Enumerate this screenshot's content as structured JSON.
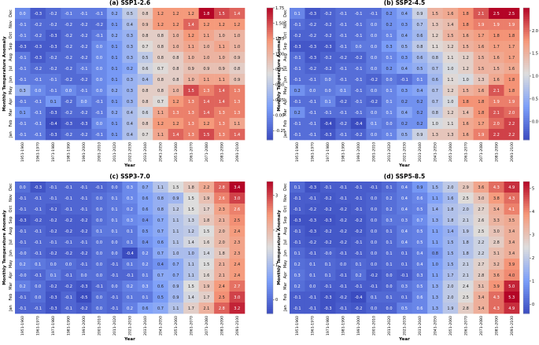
{
  "chart_data": [
    {
      "type": "heatmap",
      "title": "(a) SSP1-2.6",
      "xlabel": "Year",
      "ylabel": "Monthly Temperature Anomaly",
      "x_categories": [
        "1951-1960",
        "1961-1970",
        "1971-1980",
        "1981-1990",
        "1991-2000",
        "2001-2010",
        "2011-2020",
        "2021-2030",
        "2031-2040",
        "2041-2050",
        "2051-2060",
        "2061-2070",
        "2071-2080",
        "2081-2090",
        "2091-2100"
      ],
      "y_categories": [
        "Dec",
        "Nov",
        "Oct",
        "Sep",
        "Aug",
        "Jul",
        "Jun",
        "May",
        "Apr",
        "Mar",
        "Feb",
        "Jan"
      ],
      "colorbar": {
        "min": -0.4,
        "max": 1.75,
        "ticks": [
          "1.75",
          "1.50",
          "1.25",
          "1.00",
          "0.75",
          "0.50",
          "0.25",
          "0.00",
          "-0.25"
        ],
        "tick_values": [
          1.75,
          1.5,
          1.25,
          1.0,
          0.75,
          0.5,
          0.25,
          0.0,
          -0.25
        ]
      },
      "values": [
        [
          0.0,
          -0.3,
          -0.2,
          -0.1,
          -0.1,
          -0.1,
          0.2,
          0.5,
          0.8,
          1.2,
          1.2,
          1.2,
          1.8,
          1.5,
          1.4
        ],
        [
          -0.1,
          -0.2,
          -0.2,
          -0.2,
          -0.2,
          -0.2,
          0.1,
          0.4,
          0.9,
          1.2,
          1.2,
          1.4,
          1.2,
          1.2,
          1.2
        ],
        [
          -0.1,
          -0.2,
          -0.3,
          -0.2,
          -0.2,
          -0.1,
          0.2,
          0.3,
          0.8,
          0.8,
          1.0,
          1.2,
          1.1,
          1.0,
          1.0
        ],
        [
          -0.3,
          -0.3,
          -0.3,
          -0.2,
          -0.2,
          0.0,
          0.1,
          0.3,
          0.7,
          0.8,
          1.0,
          1.1,
          1.0,
          1.1,
          1.0
        ],
        [
          -0.1,
          -0.3,
          -0.2,
          -0.2,
          -0.2,
          0.0,
          0.1,
          0.3,
          0.5,
          0.8,
          0.8,
          1.0,
          1.0,
          1.0,
          0.9
        ],
        [
          -0.1,
          -0.2,
          -0.2,
          -0.2,
          -0.1,
          0.0,
          0.1,
          0.2,
          0.6,
          0.7,
          0.8,
          0.9,
          0.9,
          0.9,
          0.8
        ],
        [
          -0.1,
          -0.1,
          -0.1,
          -0.2,
          -0.2,
          0.0,
          0.1,
          0.3,
          0.4,
          0.8,
          0.8,
          1.0,
          1.1,
          1.1,
          0.9
        ],
        [
          0.3,
          0.0,
          -0.1,
          0.0,
          -0.1,
          0.0,
          0.2,
          0.3,
          0.8,
          0.8,
          1.0,
          1.5,
          1.3,
          1.4,
          1.3
        ],
        [
          -0.1,
          -0.1,
          0.1,
          -0.2,
          0.0,
          -0.1,
          0.1,
          0.3,
          0.8,
          0.7,
          1.2,
          1.3,
          1.4,
          1.4,
          1.3
        ],
        [
          0.1,
          -0.1,
          -0.3,
          -0.2,
          -0.2,
          -0.1,
          0.2,
          0.4,
          0.6,
          1.1,
          1.3,
          1.3,
          1.4,
          1.3,
          1.3
        ],
        [
          -0.1,
          -0.1,
          -0.4,
          -0.3,
          -0.3,
          0.0,
          0.1,
          0.4,
          0.8,
          1.2,
          1.2,
          1.3,
          1.2,
          1.3,
          1.1
        ],
        [
          -0.1,
          -0.1,
          -0.3,
          -0.2,
          -0.2,
          -0.1,
          0.1,
          0.4,
          0.7,
          1.1,
          1.4,
          1.3,
          1.5,
          1.3,
          1.4
        ]
      ]
    },
    {
      "type": "heatmap",
      "title": "(b) SSP2-4.5",
      "xlabel": "Year",
      "ylabel": "Monthly Temperature Anomaly",
      "x_categories": [
        "1951-1960",
        "1961-1970",
        "1971-1980",
        "1981-1990",
        "1991-2000",
        "2001-2010",
        "2011-2020",
        "2021-2030",
        "2031-2040",
        "2041-2050",
        "2051-2060",
        "2061-2070",
        "2071-2080",
        "2081-2090",
        "2091-2100"
      ],
      "y_categories": [
        "Dec",
        "Nov",
        "Oct",
        "Sep",
        "Aug",
        "Jul",
        "Jun",
        "May",
        "Apr",
        "Mar",
        "Feb",
        "Jan"
      ],
      "colorbar": {
        "min": -0.4,
        "max": 2.5,
        "ticks": [
          "2.0",
          "1.5",
          "1.0",
          "0.5",
          "0.0"
        ],
        "tick_values": [
          2.0,
          1.5,
          1.0,
          0.5,
          0.0
        ]
      },
      "values": [
        [
          0.1,
          -0.3,
          -0.2,
          -0.1,
          -0.1,
          -0.1,
          0.2,
          0.4,
          0.9,
          1.5,
          1.6,
          1.8,
          2.1,
          2.5,
          2.5
        ],
        [
          -0.1,
          -0.2,
          -0.2,
          -0.1,
          -0.1,
          0.0,
          0.2,
          0.3,
          0.7,
          1.3,
          1.4,
          1.8,
          1.9,
          1.9,
          1.9
        ],
        [
          -0.2,
          -0.2,
          -0.2,
          -0.1,
          -0.1,
          0.0,
          0.1,
          0.4,
          0.6,
          1.2,
          1.5,
          1.6,
          1.7,
          1.8,
          1.8
        ],
        [
          -0.3,
          -0.3,
          -0.3,
          -0.1,
          0.0,
          0.0,
          0.3,
          0.5,
          0.8,
          1.1,
          1.2,
          1.5,
          1.6,
          1.7,
          1.7
        ],
        [
          -0.1,
          -0.3,
          -0.2,
          -0.2,
          -0.2,
          0.0,
          0.1,
          0.3,
          0.6,
          0.8,
          1.1,
          1.2,
          1.5,
          1.6,
          1.7
        ],
        [
          -0.1,
          -0.2,
          -0.2,
          -0.1,
          -0.1,
          0.0,
          0.2,
          0.4,
          0.5,
          0.7,
          1.0,
          1.2,
          1.5,
          1.5,
          1.6
        ],
        [
          -0.1,
          -0.1,
          0.0,
          -0.1,
          -0.1,
          -0.2,
          0.0,
          -0.1,
          0.1,
          0.6,
          1.1,
          1.0,
          1.3,
          1.6,
          1.8
        ],
        [
          0.2,
          0.0,
          0.0,
          0.1,
          -0.1,
          0.0,
          0.1,
          0.3,
          0.4,
          0.7,
          1.2,
          1.5,
          1.6,
          2.1,
          1.8
        ],
        [
          -0.1,
          -0.1,
          0.1,
          -0.2,
          -0.1,
          -0.2,
          0.1,
          0.2,
          0.2,
          0.7,
          1.0,
          1.8,
          1.8,
          1.9,
          1.9
        ],
        [
          0.2,
          -0.1,
          -0.1,
          -0.1,
          -0.1,
          0.0,
          0.1,
          0.4,
          0.2,
          0.8,
          1.2,
          1.4,
          1.8,
          2.1,
          2.0
        ],
        [
          -0.1,
          -0.1,
          -0.4,
          -0.2,
          -0.4,
          0.1,
          0.0,
          0.2,
          0.2,
          1.0,
          1.1,
          1.6,
          1.7,
          2.0,
          2.2
        ],
        [
          -0.1,
          -0.1,
          -0.3,
          -0.1,
          -0.2,
          0.0,
          0.1,
          0.5,
          0.9,
          1.3,
          1.3,
          1.6,
          1.9,
          2.2,
          2.2
        ]
      ]
    },
    {
      "type": "heatmap",
      "title": "(c) SSP3-7.0",
      "xlabel": "Year",
      "ylabel": "Monthly Temperature Anomaly",
      "x_categories": [
        "1951-1960",
        "1961-1970",
        "1971-1980",
        "1981-1990",
        "1991-2000",
        "2001-2010",
        "2011-2020",
        "2021-2030",
        "2031-2040",
        "2041-2050",
        "2051-2060",
        "2061-2070",
        "2071-2080",
        "2081-2090",
        "2091-2100"
      ],
      "y_categories": [
        "Dec",
        "Nov",
        "Oct",
        "Sep",
        "Aug",
        "Jul",
        "Jun",
        "May",
        "Apr",
        "Mar",
        "Feb",
        "Jan"
      ],
      "colorbar": {
        "min": -0.4,
        "max": 3.4,
        "ticks": [
          "3",
          "2",
          "1",
          "0"
        ],
        "tick_values": [
          3,
          2,
          1,
          0
        ]
      },
      "values": [
        [
          0.0,
          -0.3,
          -0.1,
          -0.1,
          -0.1,
          -0.1,
          0.0,
          0.3,
          0.7,
          1.1,
          1.5,
          1.8,
          2.2,
          2.8,
          3.4
        ],
        [
          -0.1,
          -0.1,
          -0.1,
          -0.1,
          -0.1,
          0.0,
          0.1,
          0.3,
          0.6,
          0.8,
          0.9,
          1.5,
          1.9,
          2.6,
          3.0
        ],
        [
          -0.1,
          -0.1,
          -0.2,
          -0.1,
          -0.1,
          0.0,
          0.1,
          0.2,
          0.6,
          0.8,
          1.2,
          1.5,
          1.7,
          2.3,
          2.6
        ],
        [
          -0.3,
          -0.2,
          -0.2,
          -0.2,
          -0.2,
          0.0,
          0.1,
          0.3,
          0.4,
          0.7,
          1.1,
          1.3,
          1.8,
          2.1,
          2.5
        ],
        [
          -0.1,
          -0.1,
          -0.2,
          -0.2,
          -0.2,
          0.1,
          0.1,
          0.1,
          0.5,
          0.7,
          1.1,
          1.2,
          1.5,
          2.0,
          2.4
        ],
        [
          -0.1,
          -0.1,
          -0.1,
          -0.1,
          -0.1,
          0.0,
          0.0,
          0.1,
          0.4,
          0.6,
          1.1,
          1.4,
          1.6,
          2.0,
          2.3
        ],
        [
          -0.0,
          -0.1,
          -0.2,
          -0.2,
          -0.2,
          0.0,
          0.0,
          -0.4,
          0.2,
          0.7,
          1.0,
          1.0,
          1.4,
          1.8,
          2.3
        ],
        [
          0.2,
          0.1,
          0.0,
          0.0,
          -0.1,
          0.0,
          -0.1,
          0.1,
          0.2,
          0.4,
          0.7,
          1.1,
          1.5,
          2.1,
          2.4
        ],
        [
          -0.0,
          -0.1,
          0.1,
          -0.1,
          0.0,
          0.0,
          -0.1,
          -0.1,
          0.1,
          0.7,
          0.7,
          1.1,
          1.6,
          2.1,
          2.4
        ],
        [
          0.2,
          0.0,
          -0.2,
          -0.2,
          -0.3,
          -0.1,
          0.0,
          0.2,
          0.3,
          0.6,
          0.9,
          1.5,
          1.9,
          2.4,
          2.7
        ],
        [
          -0.1,
          0.0,
          -0.3,
          -0.1,
          -0.5,
          0.0,
          -0.1,
          0.1,
          0.1,
          0.5,
          0.9,
          1.4,
          1.7,
          2.5,
          3.0
        ],
        [
          -0.1,
          -0.1,
          -0.3,
          -0.1,
          -0.2,
          0.0,
          -0.1,
          0.2,
          0.6,
          0.7,
          1.1,
          1.7,
          2.1,
          2.8,
          3.2
        ]
      ]
    },
    {
      "type": "heatmap",
      "title": "(d) SSP5-8.5",
      "xlabel": "Year",
      "ylabel": "Monthly Temperature Anomaly",
      "x_categories": [
        "1951-1960",
        "1961-1970",
        "1971-1980",
        "1981-1990",
        "1991-2000",
        "2001-2010",
        "2011-2020",
        "2021-2030",
        "2031-2040",
        "2041-2050",
        "2051-2060",
        "2061-2070",
        "2071-2080",
        "2081-2090",
        "2091-2100"
      ],
      "y_categories": [
        "Dec",
        "Nov",
        "Oct",
        "Sep",
        "Aug",
        "Jul",
        "Jun",
        "May",
        "Apr",
        "Mar",
        "Feb",
        "Jan"
      ],
      "colorbar": {
        "min": -0.4,
        "max": 5.3,
        "ticks": [
          "5",
          "4",
          "3",
          "2",
          "1",
          "0"
        ],
        "tick_values": [
          5,
          4,
          3,
          2,
          1,
          0
        ]
      },
      "values": [
        [
          0.1,
          -0.3,
          -0.1,
          -0.1,
          -0.1,
          -0.1,
          0.1,
          0.4,
          0.9,
          1.5,
          2.0,
          2.9,
          3.6,
          4.3,
          4.9
        ],
        [
          -0.1,
          -0.1,
          -0.2,
          -0.1,
          -0.1,
          0.0,
          0.2,
          0.4,
          0.6,
          1.1,
          1.6,
          2.5,
          3.0,
          3.8,
          4.3
        ],
        [
          -0.1,
          -0.2,
          -0.2,
          -0.2,
          -0.1,
          0.0,
          0.2,
          0.4,
          0.5,
          1.4,
          1.8,
          2.0,
          2.7,
          3.4,
          4.1
        ],
        [
          -0.3,
          -0.3,
          -0.3,
          -0.2,
          -0.2,
          0.0,
          0.3,
          0.3,
          0.7,
          1.3,
          1.8,
          2.1,
          2.6,
          3.3,
          3.5
        ],
        [
          -0.1,
          -0.3,
          -0.2,
          -0.2,
          -0.2,
          0.0,
          0.1,
          0.4,
          0.5,
          1.1,
          1.4,
          1.9,
          2.5,
          3.0,
          3.4
        ],
        [
          -0.1,
          -0.2,
          -0.2,
          -0.2,
          -0.1,
          0.0,
          0.1,
          0.4,
          0.5,
          1.1,
          1.5,
          1.8,
          2.2,
          2.8,
          3.4
        ],
        [
          0.1,
          -0.1,
          -0.0,
          -0.1,
          -0.1,
          0.0,
          0.1,
          0.1,
          0.4,
          0.8,
          1.5,
          1.8,
          2.2,
          3.1,
          3.4
        ],
        [
          0.2,
          0.1,
          0.1,
          0.0,
          0.1,
          0.0,
          0.1,
          0.1,
          0.4,
          1.0,
          1.5,
          2.1,
          2.7,
          3.2,
          3.9
        ],
        [
          0.3,
          0.1,
          0.1,
          -0.1,
          0.2,
          -0.2,
          0.0,
          -0.1,
          0.3,
          1.1,
          1.7,
          2.1,
          2.8,
          3.6,
          4.0
        ],
        [
          0.2,
          0.0,
          -0.1,
          -0.1,
          -0.1,
          -0.1,
          0.0,
          0.3,
          0.5,
          1.3,
          2.0,
          2.4,
          3.1,
          3.9,
          5.0
        ],
        [
          -0.1,
          -0.1,
          -0.3,
          -0.2,
          -0.4,
          0.1,
          0.1,
          0.1,
          0.6,
          1.3,
          2.0,
          2.5,
          3.4,
          4.3,
          5.3
        ],
        [
          -0.1,
          -0.1,
          -0.3,
          -0.1,
          -0.2,
          0.0,
          0.0,
          0.5,
          0.6,
          1.3,
          1.9,
          2.8,
          3.4,
          4.3,
          4.9
        ]
      ]
    }
  ]
}
